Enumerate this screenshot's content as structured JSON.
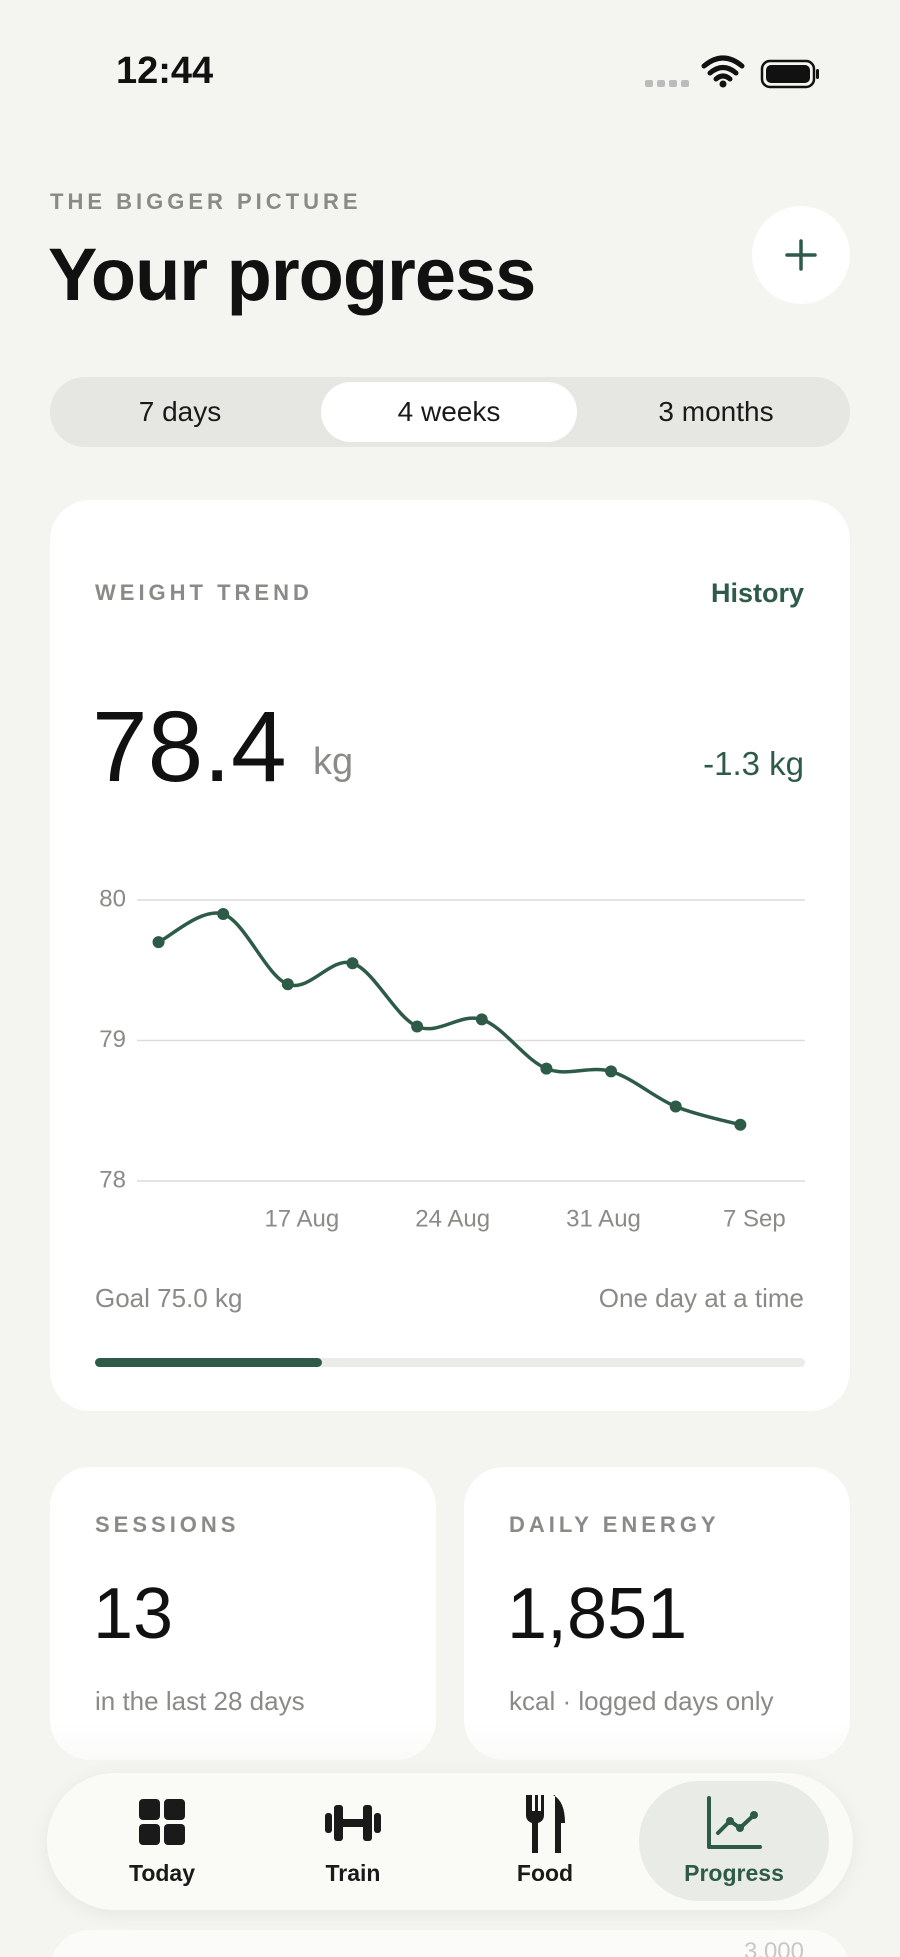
{
  "status_bar": {
    "time": "12:44"
  },
  "header": {
    "eyebrow": "THE BIGGER PICTURE",
    "title": "Your progress"
  },
  "segments": {
    "options": [
      "7 days",
      "4 weeks",
      "3 months"
    ],
    "selected": 1
  },
  "weight_card": {
    "label": "WEIGHT TREND",
    "link": "History",
    "current": "78.4",
    "unit": "kg",
    "change": "-1.3 kg",
    "goal": "Goal 75.0 kg",
    "motto": "One day at a time",
    "goal_progress": 32
  },
  "chart_data": {
    "type": "line",
    "x": [
      "11 Aug",
      "14 Aug",
      "17 Aug",
      "20 Aug",
      "23 Aug",
      "26 Aug",
      "29 Aug",
      "1 Sep",
      "4 Sep",
      "7 Sep"
    ],
    "values": [
      79.7,
      79.9,
      79.4,
      79.55,
      79.1,
      79.15,
      78.8,
      78.78,
      78.53,
      78.4
    ],
    "color": "#2e5b47",
    "xlim": [
      "10 Aug",
      "10 Sep"
    ],
    "xticks": [
      "17 Aug",
      "24 Aug",
      "31 Aug",
      "7 Sep"
    ],
    "ylim": [
      78,
      80
    ],
    "yticks": [
      78,
      79,
      80
    ],
    "grid": true
  },
  "stats": [
    {
      "label": "SESSIONS",
      "value": "13",
      "note": "in the last 28 days"
    },
    {
      "label": "DAILY ENERGY",
      "value": "1,851",
      "note": "kcal · logged days only"
    }
  ],
  "tab_bar": {
    "tabs": [
      "Today",
      "Train",
      "Food",
      "Progress"
    ],
    "selected": 3
  },
  "peek_label": "3,000"
}
